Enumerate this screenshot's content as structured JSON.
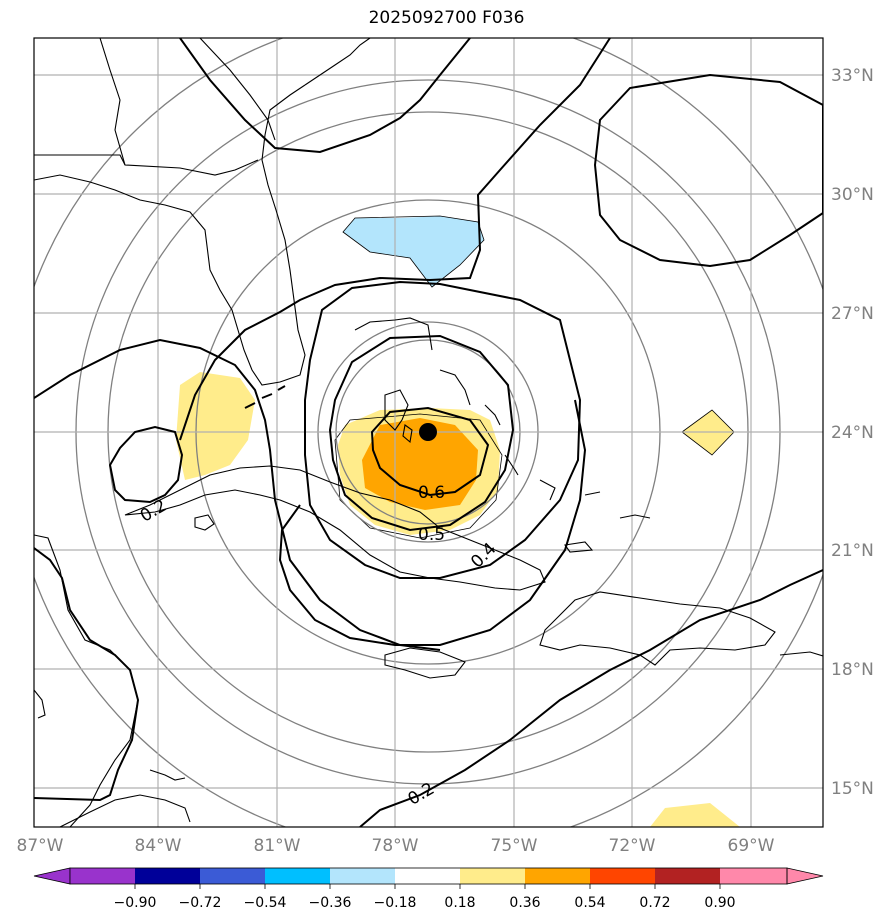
{
  "title": "2025092700 F036",
  "map": {
    "lon_labels": [
      "87°W",
      "84°W",
      "81°W",
      "78°W",
      "75°W",
      "72°W",
      "69°W"
    ],
    "lat_labels": [
      "33°N",
      "30°N",
      "27°N",
      "24°N",
      "21°N",
      "18°N",
      "15°N"
    ],
    "contour_labels": [
      "0.6",
      "0.5",
      "0.4",
      "0.2",
      "0.2"
    ],
    "center_marker": {
      "lon": -77.0,
      "lat": 24.0
    }
  },
  "colorbar": {
    "tick_labels": [
      "−0.90",
      "−0.72",
      "−0.54",
      "−0.36",
      "−0.18",
      "0.18",
      "0.36",
      "0.54",
      "0.72",
      "0.90"
    ],
    "colors": [
      "#9933cc",
      "#000099",
      "#3b5bd6",
      "#00bfff",
      "#b3e5fc",
      "#ffffff",
      "#ffec8b",
      "#ffa500",
      "#ff4500",
      "#b22222",
      "#ff88aa"
    ]
  }
}
